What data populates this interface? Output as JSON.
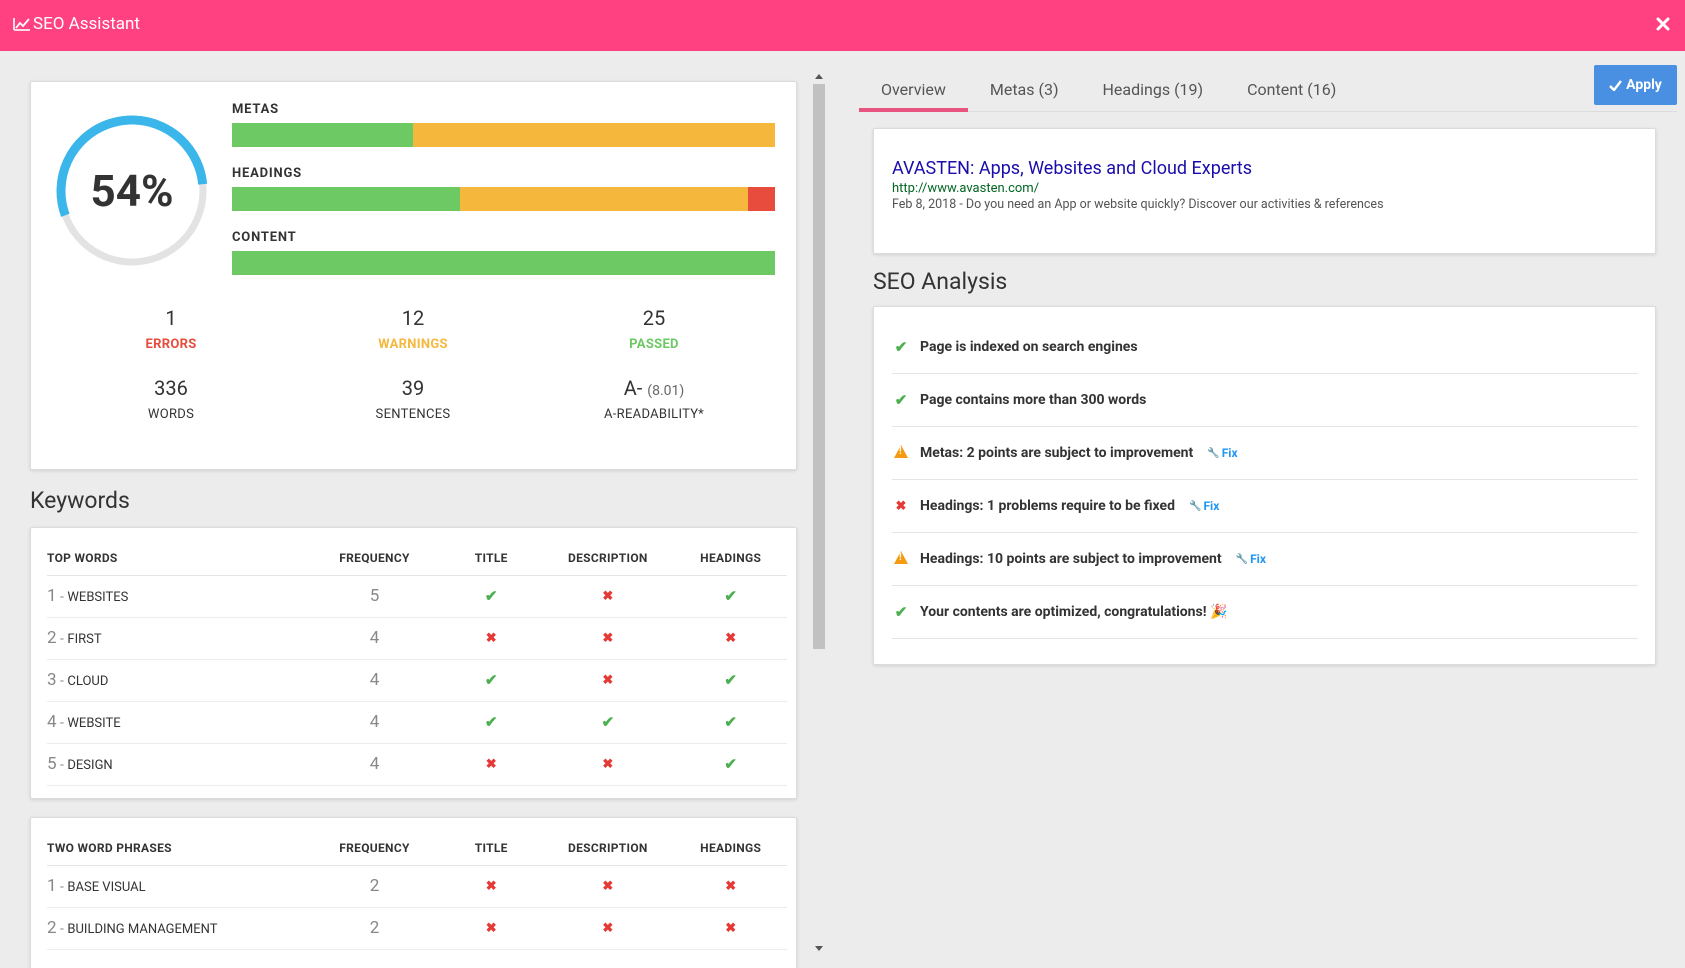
{
  "header": {
    "title": "SEO Assistant"
  },
  "score": {
    "percent": 54,
    "label": "54%"
  },
  "bars": [
    {
      "label": "METAS",
      "green": 0.333,
      "orange": 0.667,
      "red": 0
    },
    {
      "label": "HEADINGS",
      "green": 0.42,
      "orange": 0.53,
      "red": 0.05
    },
    {
      "label": "CONTENT",
      "green": 1,
      "orange": 0,
      "red": 0
    }
  ],
  "stats": {
    "errors": {
      "value": "1",
      "label": "ERRORS"
    },
    "warnings": {
      "value": "12",
      "label": "WARNINGS"
    },
    "passed": {
      "value": "25",
      "label": "PASSED"
    },
    "words": {
      "value": "336",
      "label": "WORDS"
    },
    "sentences": {
      "value": "39",
      "label": "SENTENCES"
    },
    "readability": {
      "value": "A-",
      "sub": "(8.01)",
      "label": "A-READABILITY*"
    }
  },
  "keywords": {
    "title": "Keywords",
    "top_words": {
      "headers": [
        "TOP WORDS",
        "FREQUENCY",
        "TITLE",
        "DESCRIPTION",
        "HEADINGS"
      ],
      "rows": [
        {
          "rank": "1",
          "word": "websites",
          "freq": "5",
          "title": true,
          "desc": false,
          "head": true
        },
        {
          "rank": "2",
          "word": "first",
          "freq": "4",
          "title": false,
          "desc": false,
          "head": false
        },
        {
          "rank": "3",
          "word": "cloud",
          "freq": "4",
          "title": true,
          "desc": false,
          "head": true
        },
        {
          "rank": "4",
          "word": "website",
          "freq": "4",
          "title": true,
          "desc": true,
          "head": true
        },
        {
          "rank": "5",
          "word": "design",
          "freq": "4",
          "title": false,
          "desc": false,
          "head": true
        }
      ]
    },
    "two_words": {
      "headers": [
        "TWO WORD PHRASES",
        "FREQUENCY",
        "TITLE",
        "DESCRIPTION",
        "HEADINGS"
      ],
      "rows": [
        {
          "rank": "1",
          "word": "base visual",
          "freq": "2",
          "title": false,
          "desc": false,
          "head": false
        },
        {
          "rank": "2",
          "word": "building management",
          "freq": "2",
          "title": false,
          "desc": false,
          "head": false
        }
      ]
    }
  },
  "tabs": [
    "Overview",
    "Metas (3)",
    "Headings (19)",
    "Content (16)"
  ],
  "apply_label": "Apply",
  "serp": {
    "title": "AVASTEN: Apps, Websites and Cloud Experts",
    "url": "http://www.avasten.com/",
    "desc": "Feb 8, 2018 - Do you need an App or website quickly? Discover our activities & references"
  },
  "analysis": {
    "title": "SEO Analysis",
    "fix_label": "Fix",
    "items": [
      {
        "status": "ok",
        "text": "Page is indexed on search engines",
        "fix": false
      },
      {
        "status": "ok",
        "text": "Page contains more than 300 words",
        "fix": false
      },
      {
        "status": "warn",
        "text": "Metas: 2 points are subject to improvement",
        "fix": true
      },
      {
        "status": "error",
        "text": "Headings: 1 problems require to be fixed",
        "fix": true
      },
      {
        "status": "warn",
        "text": "Headings: 10 points are subject to improvement",
        "fix": true
      },
      {
        "status": "ok",
        "text": "Your contents are optimized, congratulations! 🎉",
        "fix": false
      }
    ]
  },
  "colors": {
    "header": "#ff4081",
    "green": "#6cc963",
    "orange": "#f5b83d",
    "red": "#e74c3c",
    "apply": "#4a90e2",
    "donut": "#3bb6ea"
  }
}
